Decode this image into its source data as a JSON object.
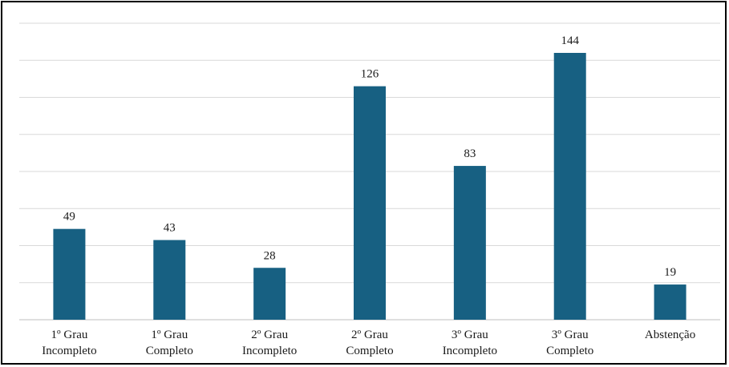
{
  "chart_data": {
    "type": "bar",
    "title": "",
    "xlabel": "",
    "ylabel": "",
    "categories": [
      [
        "1º Grau",
        "Incompleto"
      ],
      [
        "1º Grau",
        "Completo"
      ],
      [
        "2º Grau",
        "Incompleto"
      ],
      [
        "2º Grau",
        "Completo"
      ],
      [
        "3º Grau",
        "Incompleto"
      ],
      [
        "3º Grau",
        "Completo"
      ],
      [
        "Abstenção"
      ]
    ],
    "values": [
      49,
      43,
      28,
      126,
      83,
      144,
      19
    ],
    "ylim": [
      0,
      160
    ],
    "grid": true,
    "legend": "none",
    "colors": {
      "bar": "#176082",
      "grid": "#d9d9d9",
      "baseline": "#bfbfbf"
    }
  }
}
